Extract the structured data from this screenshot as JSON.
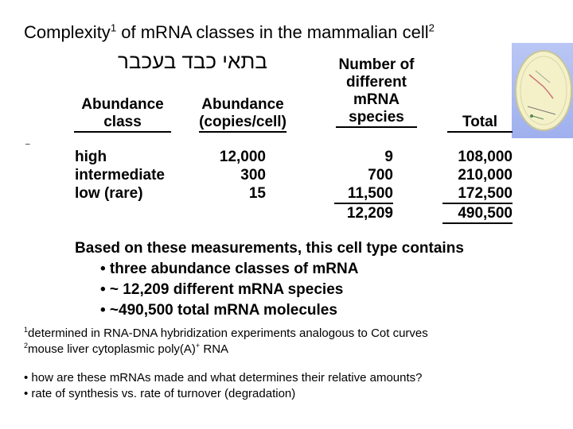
{
  "title": {
    "text": "Complexity",
    "sup1": "1",
    "rest": " of mRNA classes in the mammalian cell",
    "sup2": "2"
  },
  "hebrew": "בתאי כבד בעכבר",
  "headers": {
    "class": [
      "Abundance",
      "class"
    ],
    "copies": [
      "Abundance",
      "(copies/cell)"
    ],
    "species": [
      "Number of",
      "different",
      "mRNA",
      "species"
    ],
    "total": "Total"
  },
  "table": {
    "rows": [
      {
        "class": "high",
        "copies": "12,000",
        "species": "9",
        "total": "108,000"
      },
      {
        "class": "intermediate",
        "copies": "300",
        "species": "700",
        "total": "210,000"
      },
      {
        "class": "low (rare)",
        "copies": "15",
        "species": "11,500",
        "total": "172,500"
      }
    ],
    "sum_species": "12,209",
    "sum_total": "490,500"
  },
  "summary": {
    "lead": "Based on these measurements, this cell type contains",
    "bullets": [
      "• three abundance classes of mRNA",
      "• ~ 12,209 different mRNA species",
      "• ~490,500 total mRNA molecules"
    ]
  },
  "footnotes": [
    {
      "mark": "1",
      "text": "determined in RNA-DNA hybridization experiments analogous to Cot curves"
    },
    {
      "mark": "2",
      "text": "mouse liver cytoplasmic poly(A)",
      "sup": "+",
      "tail": " RNA"
    }
  ],
  "questions": [
    "• how are these mRNAs made and what determines their relative amounts?",
    "• rate of synthesis vs. rate of turnover (degradation)"
  ],
  "colors": {
    "thumb_bg": "#a9b8f0",
    "cell_fill": "#f4f1c8",
    "cell_outline": "#c9c59a"
  },
  "icons": {
    "thumbnail": "cell-diagram-thumbnail"
  }
}
